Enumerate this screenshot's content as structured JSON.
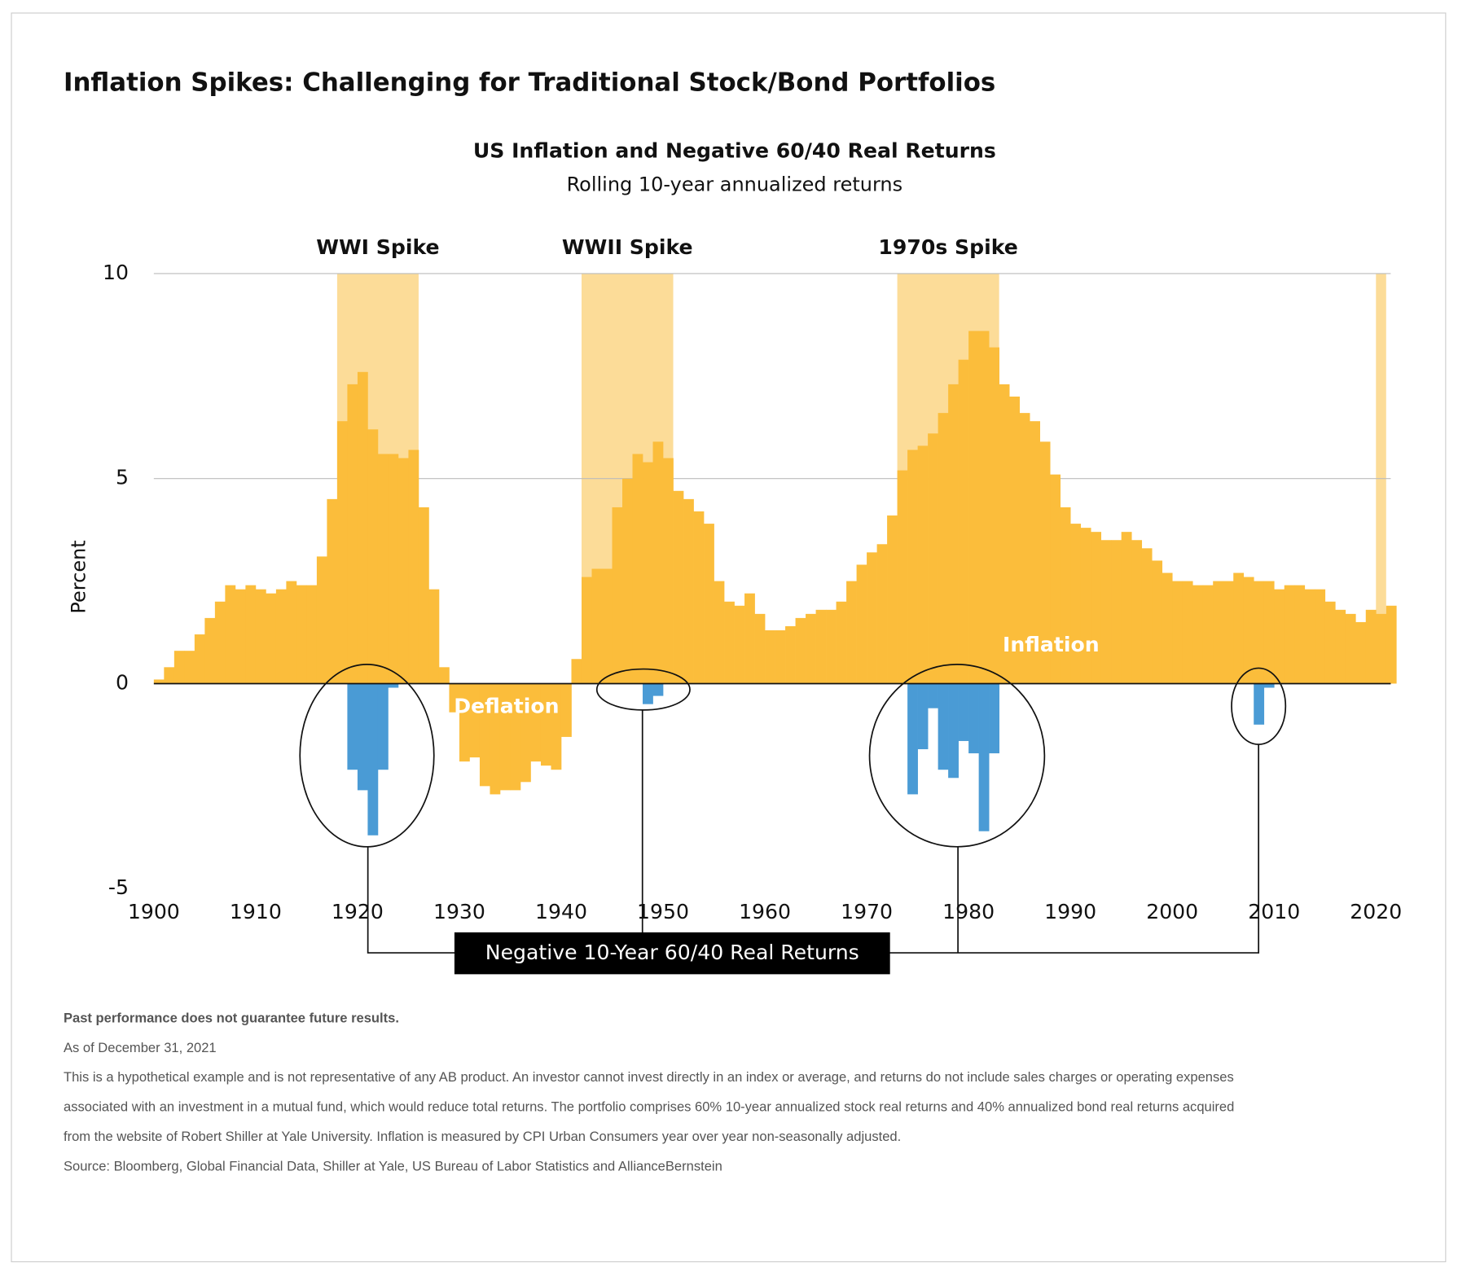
{
  "chart_data": {
    "type": "bar",
    "title": "Inflation Spikes: Challenging for Traditional Stock/Bond Portfolios",
    "subtitle": "US Inflation and Negative 60/40 Real Returns",
    "subtitle2": "Rolling 10-year annualized returns",
    "y_label": "Percent",
    "deflation_label": "Deflation",
    "xlim": [
      1900,
      2022
    ],
    "xticks": [
      1900,
      1910,
      1920,
      1930,
      1940,
      1950,
      1960,
      1970,
      1980,
      1990,
      2000,
      2010,
      2020
    ],
    "ylim": [
      -5,
      10
    ],
    "yticks": [
      -5,
      0,
      5,
      10
    ],
    "grid": true,
    "spike_color": "#fcdc98",
    "spikes": [
      {
        "label": "WWI Spike",
        "start": 1918,
        "end": 1926
      },
      {
        "label": "WWII Spike",
        "start": 1942,
        "end": 1951
      },
      {
        "label": "1970s Spike",
        "start": 1973,
        "end": 1983
      },
      {
        "start": 2020,
        "end": 2021
      }
    ],
    "series": [
      {
        "name": "Inflation",
        "color": "#fbbd3b",
        "x": [
          1900,
          1901,
          1902,
          1903,
          1904,
          1905,
          1906,
          1907,
          1908,
          1909,
          1910,
          1911,
          1912,
          1913,
          1914,
          1915,
          1916,
          1917,
          1918,
          1919,
          1920,
          1921,
          1922,
          1923,
          1924,
          1925,
          1926,
          1927,
          1928,
          1929,
          1930,
          1931,
          1932,
          1933,
          1934,
          1935,
          1936,
          1937,
          1938,
          1939,
          1940,
          1941,
          1942,
          1943,
          1944,
          1945,
          1946,
          1947,
          1948,
          1949,
          1950,
          1951,
          1952,
          1953,
          1954,
          1955,
          1956,
          1957,
          1958,
          1959,
          1960,
          1961,
          1962,
          1963,
          1964,
          1965,
          1966,
          1967,
          1968,
          1969,
          1970,
          1971,
          1972,
          1973,
          1974,
          1975,
          1976,
          1977,
          1978,
          1979,
          1980,
          1981,
          1982,
          1983,
          1984,
          1985,
          1986,
          1987,
          1988,
          1989,
          1990,
          1991,
          1992,
          1993,
          1994,
          1995,
          1996,
          1997,
          1998,
          1999,
          2000,
          2001,
          2002,
          2003,
          2004,
          2005,
          2006,
          2007,
          2008,
          2009,
          2010,
          2011,
          2012,
          2013,
          2014,
          2015,
          2016,
          2017,
          2018,
          2019,
          2020,
          2021
        ],
        "values": [
          0.1,
          0.4,
          0.8,
          0.8,
          1.2,
          1.6,
          2.0,
          2.4,
          2.3,
          2.4,
          2.3,
          2.2,
          2.3,
          2.5,
          2.4,
          2.4,
          3.1,
          4.5,
          6.4,
          7.3,
          7.6,
          6.2,
          5.6,
          5.6,
          5.5,
          5.7,
          4.3,
          2.3,
          0.4,
          -0.7,
          -1.9,
          -1.8,
          -2.5,
          -2.7,
          -2.6,
          -2.6,
          -2.4,
          -1.9,
          -2.0,
          -2.1,
          -1.3,
          0.6,
          2.6,
          2.8,
          2.8,
          4.3,
          5.0,
          5.6,
          5.4,
          5.9,
          5.5,
          4.7,
          4.5,
          4.2,
          3.9,
          2.5,
          2.0,
          1.9,
          2.2,
          1.7,
          1.3,
          1.3,
          1.4,
          1.6,
          1.7,
          1.8,
          1.8,
          2.0,
          2.5,
          2.9,
          3.2,
          3.4,
          4.1,
          5.2,
          5.7,
          5.8,
          6.1,
          6.6,
          7.3,
          7.9,
          8.6,
          8.6,
          8.2,
          7.3,
          7.0,
          6.6,
          6.4,
          5.9,
          5.1,
          4.3,
          3.9,
          3.8,
          3.7,
          3.5,
          3.5,
          3.7,
          3.5,
          3.3,
          3.0,
          2.7,
          2.5,
          2.5,
          2.4,
          2.4,
          2.5,
          2.5,
          2.7,
          2.6,
          2.5,
          2.5,
          2.3,
          2.4,
          2.4,
          2.3,
          2.3,
          2.0,
          1.8,
          1.7,
          1.5,
          1.8,
          1.7,
          1.9
        ]
      },
      {
        "name": "Negative 10-Year 60/40 Real Returns",
        "color": "#4a9bd5",
        "x": [
          1919,
          1920,
          1921,
          1922,
          1923,
          1948,
          1949,
          1974,
          1975,
          1976,
          1977,
          1978,
          1979,
          1980,
          1981,
          1982,
          2008,
          2009
        ],
        "values": [
          -2.1,
          -2.6,
          -3.7,
          -2.1,
          -0.1,
          -0.5,
          -0.3,
          -2.7,
          -1.6,
          -0.6,
          -2.1,
          -2.3,
          -1.4,
          -1.7,
          -3.6,
          -1.7,
          -1.0,
          -0.1
        ]
      }
    ],
    "notes": [
      "Past performance does not guarantee future results.",
      "As of December 31, 2021",
      "This is a hypothetical example and is not representative of any AB product. An investor cannot invest directly in an index or average, and returns do not include sales charges or operating expenses",
      "associated with an investment in a mutual fund, which would reduce total returns. The portfolio comprises 60% 10-year annualized stock real returns and 40% annualized bond real returns acquired",
      "from the website of Robert Shiller at Yale University. Inflation is measured by CPI Urban Consumers year over year non-seasonally adjusted.",
      "Source: Bloomberg, Global Financial Data, Shiller at Yale, US Bureau of Labor Statistics and AllianceBernstein"
    ]
  }
}
